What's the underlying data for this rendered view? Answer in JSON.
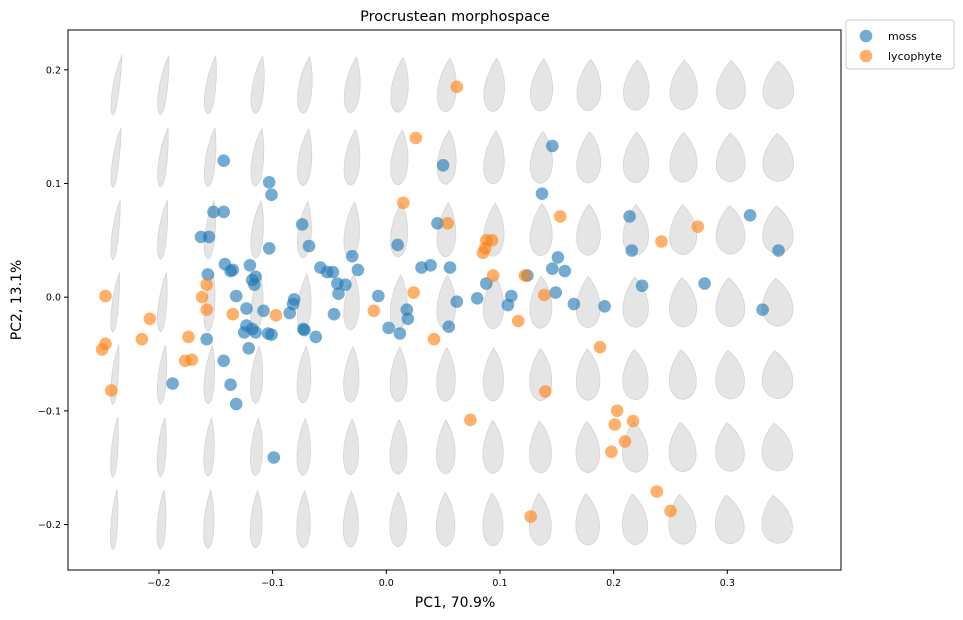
{
  "chart_data": {
    "type": "scatter",
    "title": "Procrustean morphospace",
    "xlabel": "PC1, 70.9%",
    "ylabel": "PC2, 13.1%",
    "xlim": [
      -0.28,
      0.4
    ],
    "ylim": [
      -0.24,
      0.235
    ],
    "xticks": [
      -0.2,
      -0.1,
      0.0,
      0.1,
      0.2,
      0.3
    ],
    "xtick_labels": [
      "−0.2",
      "−0.1",
      "0.0",
      "0.1",
      "0.2",
      "0.3"
    ],
    "yticks": [
      -0.2,
      -0.1,
      0.0,
      0.1,
      0.2
    ],
    "ytick_labels": [
      "−0.2",
      "−0.1",
      "0.0",
      "0.1",
      "0.2"
    ],
    "grid": false,
    "legend_position": "outside-top-right",
    "background": {
      "description": "grid of theoretical leaf shapes",
      "columns": 15,
      "rows": 7,
      "color": "#e5e5e5"
    },
    "series": [
      {
        "name": "moss",
        "color": "#1f77b4",
        "points": [
          [
            -0.143,
            0.12
          ],
          [
            -0.103,
            0.101
          ],
          [
            -0.101,
            0.09
          ],
          [
            -0.152,
            0.075
          ],
          [
            -0.143,
            0.075
          ],
          [
            -0.163,
            0.053
          ],
          [
            -0.156,
            0.053
          ],
          [
            -0.074,
            0.064
          ],
          [
            -0.103,
            0.043
          ],
          [
            -0.068,
            0.045
          ],
          [
            -0.157,
            0.02
          ],
          [
            -0.142,
            0.029
          ],
          [
            -0.137,
            0.023
          ],
          [
            -0.135,
            0.024
          ],
          [
            -0.12,
            0.028
          ],
          [
            -0.118,
            0.015
          ],
          [
            -0.115,
            0.018
          ],
          [
            -0.116,
            0.011
          ],
          [
            -0.132,
            0.001
          ],
          [
            -0.123,
            -0.01
          ],
          [
            -0.108,
            -0.012
          ],
          [
            -0.085,
            -0.014
          ],
          [
            -0.082,
            -0.006
          ],
          [
            -0.081,
            -0.002
          ],
          [
            -0.058,
            0.026
          ],
          [
            -0.052,
            0.022
          ],
          [
            -0.047,
            0.022
          ],
          [
            -0.043,
            0.012
          ],
          [
            -0.042,
            0.003
          ],
          [
            -0.036,
            0.011
          ],
          [
            -0.03,
            0.036
          ],
          [
            -0.025,
            0.024
          ],
          [
            -0.046,
            -0.015
          ],
          [
            -0.123,
            -0.025
          ],
          [
            -0.125,
            -0.031
          ],
          [
            -0.118,
            -0.028
          ],
          [
            -0.115,
            -0.031
          ],
          [
            -0.104,
            -0.032
          ],
          [
            -0.101,
            -0.033
          ],
          [
            -0.073,
            -0.028
          ],
          [
            -0.072,
            -0.029
          ],
          [
            -0.062,
            -0.035
          ],
          [
            -0.121,
            -0.045
          ],
          [
            -0.158,
            -0.037
          ],
          [
            -0.143,
            -0.056
          ],
          [
            -0.137,
            -0.077
          ],
          [
            -0.132,
            -0.094
          ],
          [
            -0.188,
            -0.076
          ],
          [
            -0.099,
            -0.141
          ],
          [
            -0.007,
            0.001
          ],
          [
            0.01,
            0.046
          ],
          [
            0.002,
            -0.027
          ],
          [
            0.012,
            -0.032
          ],
          [
            0.018,
            -0.011
          ],
          [
            0.019,
            -0.019
          ],
          [
            0.031,
            0.026
          ],
          [
            0.039,
            0.028
          ],
          [
            0.045,
            0.065
          ],
          [
            0.05,
            0.116
          ],
          [
            0.056,
            0.026
          ],
          [
            0.055,
            -0.026
          ],
          [
            0.062,
            -0.004
          ],
          [
            0.08,
            -0.001
          ],
          [
            0.088,
            0.012
          ],
          [
            0.107,
            -0.007
          ],
          [
            0.11,
            0.001
          ],
          [
            0.124,
            0.019
          ],
          [
            0.137,
            0.091
          ],
          [
            0.146,
            0.133
          ],
          [
            0.146,
            0.025
          ],
          [
            0.149,
            0.004
          ],
          [
            0.151,
            0.035
          ],
          [
            0.157,
            0.023
          ],
          [
            0.165,
            -0.006
          ],
          [
            0.192,
            -0.008
          ],
          [
            0.214,
            0.071
          ],
          [
            0.216,
            0.041
          ],
          [
            0.225,
            0.01
          ],
          [
            0.28,
            0.012
          ],
          [
            0.32,
            0.072
          ],
          [
            0.331,
            -0.011
          ],
          [
            0.345,
            0.041
          ]
        ]
      },
      {
        "name": "lycophyte",
        "color": "#ff7f0e",
        "points": [
          [
            -0.247,
            0.001
          ],
          [
            -0.25,
            -0.046
          ],
          [
            -0.247,
            -0.041
          ],
          [
            -0.242,
            -0.082
          ],
          [
            -0.208,
            -0.019
          ],
          [
            -0.215,
            -0.037
          ],
          [
            -0.174,
            -0.035
          ],
          [
            -0.177,
            -0.056
          ],
          [
            -0.171,
            -0.055
          ],
          [
            -0.162,
            0.0
          ],
          [
            -0.158,
            0.011
          ],
          [
            -0.158,
            -0.011
          ],
          [
            -0.135,
            -0.015
          ],
          [
            -0.097,
            -0.016
          ],
          [
            -0.011,
            -0.012
          ],
          [
            0.015,
            0.083
          ],
          [
            0.024,
            0.004
          ],
          [
            0.026,
            0.14
          ],
          [
            0.042,
            -0.037
          ],
          [
            0.054,
            0.065
          ],
          [
            0.062,
            0.185
          ],
          [
            0.074,
            -0.108
          ],
          [
            0.085,
            0.039
          ],
          [
            0.087,
            0.043
          ],
          [
            0.088,
            0.05
          ],
          [
            0.093,
            0.05
          ],
          [
            0.094,
            0.019
          ],
          [
            0.116,
            -0.021
          ],
          [
            0.122,
            0.019
          ],
          [
            0.127,
            -0.193
          ],
          [
            0.139,
            0.002
          ],
          [
            0.14,
            -0.083
          ],
          [
            0.153,
            0.071
          ],
          [
            0.188,
            -0.044
          ],
          [
            0.198,
            -0.136
          ],
          [
            0.201,
            -0.112
          ],
          [
            0.203,
            -0.1
          ],
          [
            0.21,
            -0.127
          ],
          [
            0.217,
            -0.109
          ],
          [
            0.238,
            -0.171
          ],
          [
            0.242,
            0.049
          ],
          [
            0.25,
            -0.188
          ],
          [
            0.274,
            0.062
          ]
        ]
      }
    ]
  }
}
